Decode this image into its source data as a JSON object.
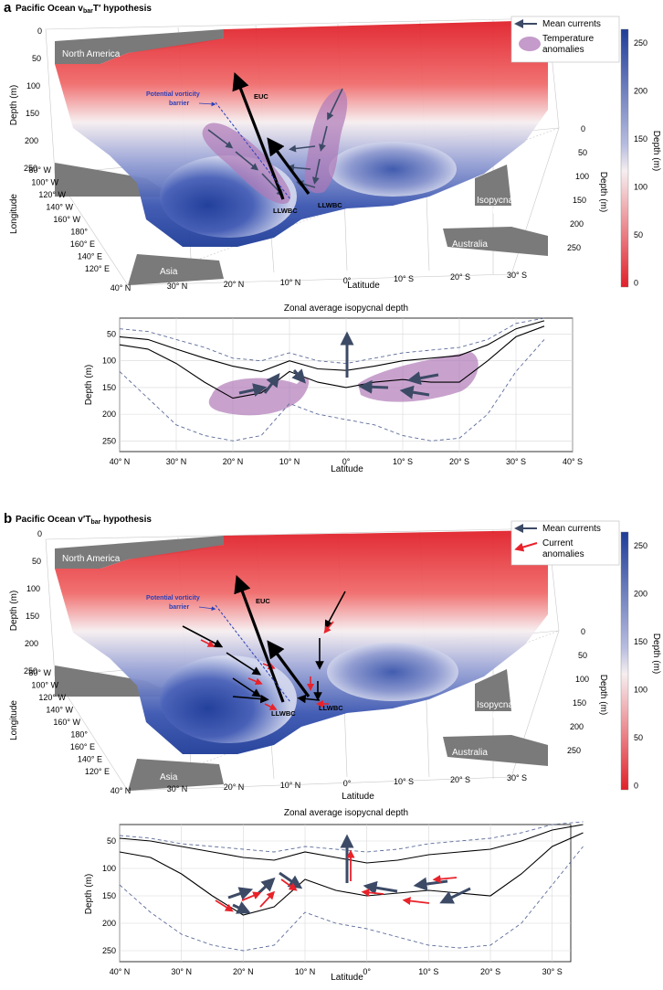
{
  "panel_a": {
    "letter": "a",
    "title": "Pacific Ocean v",
    "title_sub": "bar",
    "title_after": "T′ hypothesis",
    "legend": {
      "item1": "Mean currents",
      "item2_line1": "Temperature",
      "item2_line2": "anomalies"
    },
    "labels": {
      "north_america": "North America",
      "asia": "Asia",
      "australia": "Australia",
      "outcrop_line1": "Isopycnal",
      "outcrop_line2": "outcrop",
      "euc": "EUC",
      "llwbc_left": "LLWBC",
      "llwbc_right": "LLWBC",
      "pv_line1": "Potential vorticity",
      "pv_line2": "barrier",
      "depth_axis": "Depth (m)",
      "longitude_axis": "Longitude",
      "latitude_axis": "Latitude",
      "depth_right": "Depth (m)",
      "colorbar_label": "Depth (m)"
    },
    "zonal": {
      "title": "Zonal average isopycnal depth",
      "xlabel": "Latitude",
      "ylabel": "Depth (m)"
    }
  },
  "panel_b": {
    "letter": "b",
    "title": "Pacific Ocean v′T",
    "title_sub": "bar",
    "title_after": " hypothesis",
    "legend": {
      "item1": "Mean currents",
      "item2_line1": "Current",
      "item2_line2": "anomalies"
    },
    "labels": {
      "north_america": "North America",
      "asia": "Asia",
      "australia": "Australia",
      "outcrop_line1": "Isopycnal",
      "outcrop_line2": "outcrop",
      "euc": "EUC",
      "llwbc_left": "LLWBC",
      "llwbc_right": "LLWBC",
      "pv_line1": "Potential vorticity",
      "pv_line2": "barrier",
      "depth_axis": "Depth (m)",
      "longitude_axis": "Longitude",
      "latitude_axis": "Latitude",
      "depth_right": "Depth (m)",
      "colorbar_label": "Depth (m)"
    },
    "zonal": {
      "title": "Zonal average isopycnal depth",
      "xlabel": "Latitude",
      "ylabel": "Depth (m)"
    }
  },
  "ticks": {
    "depth_left": [
      "0",
      "50",
      "100",
      "150",
      "200",
      "250"
    ],
    "longitude": [
      "80° W",
      "100° W",
      "120° W",
      "140° W",
      "160° W",
      "180°",
      "160° E",
      "140° E",
      "120° E"
    ],
    "latitude_3d": [
      "40° N",
      "30° N",
      "20° N",
      "10° N",
      "0°",
      "10° S",
      "20° S",
      "30° S"
    ],
    "depth_right": [
      "0",
      "50",
      "100",
      "150",
      "200",
      "250"
    ],
    "colorbar": [
      "250",
      "200",
      "150",
      "100",
      "50",
      "0"
    ],
    "zonal_y": [
      "50",
      "100",
      "150",
      "200",
      "250"
    ],
    "zonal_x_a": [
      "40° N",
      "30° N",
      "20° N",
      "10° N",
      "0°",
      "10° S",
      "20° S",
      "30° S",
      "40° S"
    ],
    "zonal_x_b": [
      "40° N",
      "30° N",
      "20° N",
      "10° N",
      "0°",
      "10° S",
      "20° S",
      "30° S"
    ]
  },
  "colors": {
    "shallow": "#e0202a",
    "mid": "#f4f0f2",
    "deep": "#1e3c98",
    "land": "#7a7a7a",
    "mean_current": "#3c4a66",
    "anomaly_arrow": "#e8222a",
    "temperature_anomaly": "#b07ab8"
  },
  "chart_data": [
    {
      "type": "line",
      "title": "Zonal average isopycnal depth",
      "xlabel": "Latitude",
      "ylabel": "Depth (m)",
      "xlim": [
        40,
        -40
      ],
      "ylim": [
        270,
        20
      ],
      "x": [
        40,
        35,
        30,
        25,
        20,
        15,
        10,
        5,
        0,
        -5,
        -10,
        -15,
        -20,
        -25,
        -30,
        -35
      ],
      "series": [
        {
          "values": [
            55,
            60,
            78,
            95,
            110,
            120,
            100,
            115,
            118,
            110,
            100,
            95,
            90,
            70,
            40,
            25
          ]
        },
        {
          "values": [
            70,
            78,
            105,
            140,
            170,
            160,
            120,
            140,
            150,
            140,
            135,
            140,
            140,
            100,
            55,
            35
          ]
        },
        {
          "values": [
            40,
            45,
            60,
            75,
            95,
            100,
            85,
            100,
            105,
            95,
            85,
            80,
            75,
            60,
            30,
            20
          ]
        },
        {
          "values": [
            120,
            170,
            220,
            240,
            250,
            240,
            180,
            200,
            210,
            220,
            240,
            250,
            245,
            200,
            120,
            60
          ]
        }
      ]
    },
    {
      "type": "line",
      "title": "Zonal average isopycnal depth",
      "xlabel": "Latitude",
      "ylabel": "Depth (m)",
      "xlim": [
        40,
        -33
      ],
      "ylim": [
        270,
        20
      ],
      "x": [
        40,
        35,
        30,
        25,
        20,
        15,
        10,
        5,
        0,
        -5,
        -10,
        -15,
        -20,
        -25,
        -30,
        -35
      ],
      "series": [
        {
          "values": [
            45,
            50,
            60,
            70,
            80,
            85,
            70,
            80,
            90,
            85,
            75,
            70,
            65,
            50,
            30,
            20
          ]
        },
        {
          "values": [
            70,
            80,
            110,
            150,
            185,
            170,
            120,
            140,
            150,
            145,
            140,
            145,
            150,
            110,
            60,
            35
          ]
        },
        {
          "values": [
            40,
            45,
            55,
            60,
            65,
            70,
            60,
            65,
            70,
            65,
            55,
            50,
            45,
            35,
            20,
            15
          ]
        },
        {
          "values": [
            130,
            180,
            220,
            240,
            250,
            240,
            180,
            200,
            210,
            225,
            240,
            245,
            240,
            200,
            130,
            60
          ]
        }
      ]
    }
  ]
}
